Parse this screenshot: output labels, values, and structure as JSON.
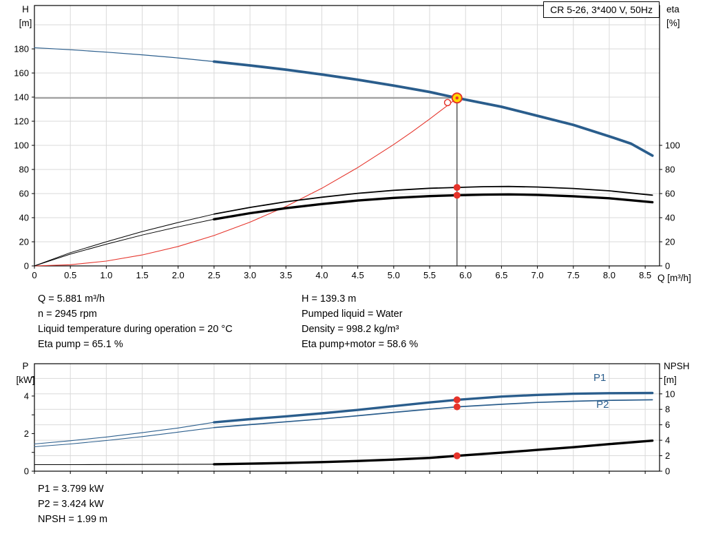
{
  "title_box": {
    "label": "CR 5-26, 3*400 V, 50Hz"
  },
  "colors": {
    "blue": "#2a5d8c",
    "red": "#e5332a",
    "black": "#000000",
    "yellow": "#ffd800",
    "gray": "#6f6f6f",
    "dark": "#2e2e2e",
    "grid": "#d9d9d9"
  },
  "info_top": {
    "col1": [
      "Q = 5.881 m³/h",
      "n = 2945 rpm",
      "Liquid temperature during operation = 20 °C",
      "Eta pump = 65.1 %"
    ],
    "col2": [
      "H = 139.3 m",
      "Pumped liquid = Water",
      "Density = 998.2 kg/m³",
      "Eta pump+motor = 58.6 %"
    ]
  },
  "info_bottom": [
    "P1 = 3.799 kW",
    "P2 = 3.424 kW",
    "NPSH = 1.99 m"
  ],
  "chart_data": [
    {
      "type": "line",
      "name": "head-efficiency-chart",
      "title": "CR 5-26, 3*400 V, 50Hz",
      "x": {
        "label": "Q [m³/h]",
        "min": 0,
        "max": 8.7,
        "tick_step": 0.5,
        "ticks": [
          0,
          0.5,
          1,
          1.5,
          2,
          2.5,
          3,
          3.5,
          4,
          4.5,
          5,
          5.5,
          6,
          6.5,
          7,
          7.5,
          8,
          8.5
        ],
        "tick_labels": [
          "0",
          "0.5",
          "1.0",
          "1.5",
          "2.0",
          "2.5",
          "3.0",
          "3.5",
          "4.0",
          "4.5",
          "5.0",
          "5.5",
          "6.0",
          "6.5",
          "7.0",
          "7.5",
          "8.0",
          "8.5"
        ]
      },
      "y_left": {
        "name": "H",
        "unit": "[m]",
        "min": 0,
        "max": 216,
        "ticks": [
          0,
          20,
          40,
          60,
          80,
          100,
          120,
          140,
          160,
          180
        ],
        "tick_labels": [
          "0",
          "20",
          "40",
          "60",
          "80",
          "100",
          "120",
          "140",
          "160",
          "180"
        ]
      },
      "y_right": {
        "name": "eta",
        "unit": "[%]",
        "min": 0,
        "max": 216,
        "ticks": [
          0,
          20,
          40,
          60,
          80,
          100
        ],
        "tick_labels": [
          "0",
          "20",
          "40",
          "60",
          "80",
          "100"
        ]
      },
      "grid_axis": "left",
      "grid_values": [
        20,
        40,
        60,
        80,
        100,
        120,
        140,
        160,
        180,
        200
      ],
      "series": [
        {
          "name": "pump-curve-h",
          "axis": "left",
          "color": "blue",
          "split": 2.5,
          "w_thin": 1.2,
          "w_thick": 3.8,
          "points": [
            [
              0,
              181
            ],
            [
              0.5,
              179.3
            ],
            [
              1,
              177.3
            ],
            [
              1.5,
              175.1
            ],
            [
              2,
              172.5
            ],
            [
              2.5,
              169.5
            ],
            [
              3,
              166.3
            ],
            [
              3.5,
              162.8
            ],
            [
              4,
              158.8
            ],
            [
              4.5,
              154.4
            ],
            [
              5,
              149.6
            ],
            [
              5.5,
              144.3
            ],
            [
              5.881,
              139.3
            ],
            [
              6.5,
              132
            ],
            [
              7,
              124.5
            ],
            [
              7.5,
              117
            ],
            [
              8,
              107.5
            ],
            [
              8.3,
              101.5
            ],
            [
              8.6,
              91.5
            ]
          ]
        },
        {
          "name": "system-curve",
          "axis": "left",
          "color": "red",
          "split": null,
          "w_thin": 1.1,
          "w_thick": 1.1,
          "points": [
            [
              0,
              0
            ],
            [
              0.5,
              1
            ],
            [
              1,
              4
            ],
            [
              1.5,
              9.1
            ],
            [
              2,
              16.1
            ],
            [
              2.5,
              25.2
            ],
            [
              3,
              36.3
            ],
            [
              3.5,
              49.3
            ],
            [
              4,
              64.4
            ],
            [
              4.5,
              81.6
            ],
            [
              5,
              100.7
            ],
            [
              5.25,
              111
            ],
            [
              5.5,
              121.8
            ],
            [
              5.75,
              133.1
            ],
            [
              5.881,
              139.3
            ]
          ]
        },
        {
          "name": "eta-pump-curve",
          "axis": "left",
          "color": "black",
          "split": 2.5,
          "w_thin": 1,
          "w_thick": 1.8,
          "points": [
            [
              0,
              0
            ],
            [
              0.5,
              11
            ],
            [
              1,
              20
            ],
            [
              1.5,
              28.5
            ],
            [
              2,
              36
            ],
            [
              2.5,
              43
            ],
            [
              3,
              48.5
            ],
            [
              3.5,
              53.2
            ],
            [
              4,
              57
            ],
            [
              4.5,
              60.2
            ],
            [
              5,
              62.7
            ],
            [
              5.5,
              64.4
            ],
            [
              5.881,
              65.1
            ],
            [
              6.25,
              65.7
            ],
            [
              6.6,
              65.9
            ],
            [
              7,
              65.4
            ],
            [
              7.5,
              64.2
            ],
            [
              8,
              62.3
            ],
            [
              8.6,
              58.7
            ]
          ]
        },
        {
          "name": "eta-pump-motor-curve",
          "axis": "left",
          "color": "black",
          "split": 2.5,
          "w_thin": 1,
          "w_thick": 3.4,
          "points": [
            [
              0,
              0
            ],
            [
              0.5,
              9.8
            ],
            [
              1,
              18
            ],
            [
              1.5,
              25.6
            ],
            [
              2,
              32.4
            ],
            [
              2.5,
              38.7
            ],
            [
              3,
              43.7
            ],
            [
              3.5,
              47.9
            ],
            [
              4,
              51.3
            ],
            [
              4.5,
              54.2
            ],
            [
              5,
              56.4
            ],
            [
              5.5,
              57.9
            ],
            [
              5.881,
              58.6
            ],
            [
              6.25,
              59.1
            ],
            [
              6.6,
              59.3
            ],
            [
              7,
              58.9
            ],
            [
              7.5,
              57.8
            ],
            [
              8,
              56.1
            ],
            [
              8.6,
              52.8
            ]
          ]
        }
      ],
      "crosshair": [
        {
          "type": "h",
          "axis": "left",
          "v": 139.3,
          "q0": 0,
          "q1": 5.881,
          "color": "gray"
        },
        {
          "type": "v",
          "axis": "left",
          "q": 5.881,
          "v0": 0,
          "v1": 139.3,
          "color": "dark"
        }
      ],
      "markers": [
        {
          "q": 5.881,
          "v": 139.3,
          "axis": "left",
          "kind": "duty",
          "name": "duty-point"
        },
        {
          "q": 5.75,
          "v": 135.5,
          "axis": "left",
          "kind": "open",
          "name": "rated-point"
        },
        {
          "q": 5.881,
          "v": 65.1,
          "axis": "left",
          "kind": "dot",
          "name": "eta-pump-point"
        },
        {
          "q": 5.881,
          "v": 58.6,
          "axis": "left",
          "kind": "dot",
          "name": "eta-pump-motor-point"
        }
      ],
      "annotations": []
    },
    {
      "type": "line",
      "name": "power-npsh-chart",
      "title": "",
      "x": {
        "label": "",
        "min": 0,
        "max": 8.7,
        "tick_step": 0.5,
        "ticks": [
          0,
          0.5,
          1,
          1.5,
          2,
          2.5,
          3,
          3.5,
          4,
          4.5,
          5,
          5.5,
          6,
          6.5,
          7,
          7.5,
          8,
          8.5
        ],
        "tick_labels": []
      },
      "y_left": {
        "name": "P",
        "unit": "[kW]",
        "min": 0,
        "max": 5.72,
        "ticks": [
          0,
          1,
          2,
          3,
          4,
          5
        ],
        "tick_labels": [
          "0",
          "",
          "2",
          "",
          "4",
          ""
        ]
      },
      "y_right": {
        "name": "NPSH",
        "unit": "[m]",
        "min": 0,
        "max": 13.9,
        "ticks": [
          0,
          2,
          4,
          6,
          8,
          10,
          12
        ],
        "tick_labels": [
          "0",
          "2",
          "4",
          "6",
          "8",
          "10",
          ""
        ]
      },
      "grid_axis": "right",
      "grid_values": [
        2,
        4,
        6,
        8,
        10,
        12
      ],
      "series": [
        {
          "name": "p1-curve",
          "axis": "left",
          "color": "blue",
          "split": 2.5,
          "w_thin": 1.1,
          "w_thick": 3.4,
          "points": [
            [
              0,
              1.45
            ],
            [
              0.5,
              1.62
            ],
            [
              1,
              1.82
            ],
            [
              1.5,
              2.05
            ],
            [
              2,
              2.3
            ],
            [
              2.5,
              2.6
            ],
            [
              3,
              2.77
            ],
            [
              3.5,
              2.92
            ],
            [
              4,
              3.08
            ],
            [
              4.5,
              3.26
            ],
            [
              5,
              3.46
            ],
            [
              5.5,
              3.66
            ],
            [
              5.881,
              3.799
            ],
            [
              6.5,
              3.97
            ],
            [
              7,
              4.06
            ],
            [
              7.5,
              4.12
            ],
            [
              8,
              4.15
            ],
            [
              8.6,
              4.16
            ]
          ]
        },
        {
          "name": "p2-curve",
          "axis": "left",
          "color": "blue",
          "split": 2.5,
          "w_thin": 1.1,
          "w_thick": 1.7,
          "points": [
            [
              0,
              1.3
            ],
            [
              0.5,
              1.45
            ],
            [
              1,
              1.63
            ],
            [
              1.5,
              1.84
            ],
            [
              2,
              2.08
            ],
            [
              2.5,
              2.32
            ],
            [
              3,
              2.48
            ],
            [
              3.5,
              2.63
            ],
            [
              4,
              2.78
            ],
            [
              4.5,
              2.95
            ],
            [
              5,
              3.13
            ],
            [
              5.5,
              3.3
            ],
            [
              5.881,
              3.424
            ],
            [
              6.5,
              3.56
            ],
            [
              7,
              3.66
            ],
            [
              7.5,
              3.72
            ],
            [
              8,
              3.77
            ],
            [
              8.6,
              3.8
            ]
          ]
        },
        {
          "name": "npsh-curve",
          "axis": "right",
          "color": "black",
          "split": 2.5,
          "w_thin": 1.1,
          "w_thick": 3.4,
          "points": [
            [
              0,
              0.85
            ],
            [
              0.5,
              0.85
            ],
            [
              1,
              0.86
            ],
            [
              1.5,
              0.87
            ],
            [
              2,
              0.88
            ],
            [
              2.5,
              0.9
            ],
            [
              3,
              0.97
            ],
            [
              3.5,
              1.06
            ],
            [
              4,
              1.18
            ],
            [
              4.5,
              1.32
            ],
            [
              5,
              1.5
            ],
            [
              5.5,
              1.72
            ],
            [
              5.881,
              1.99
            ],
            [
              6.5,
              2.4
            ],
            [
              7,
              2.75
            ],
            [
              7.5,
              3.1
            ],
            [
              8,
              3.5
            ],
            [
              8.6,
              3.95
            ]
          ]
        }
      ],
      "crosshair": [],
      "markers": [
        {
          "q": 5.881,
          "v": 3.799,
          "axis": "left",
          "kind": "dot",
          "name": "p1-point"
        },
        {
          "q": 5.881,
          "v": 3.424,
          "axis": "left",
          "kind": "dot",
          "name": "p2-point"
        },
        {
          "q": 5.881,
          "v": 1.99,
          "axis": "right",
          "kind": "dot",
          "name": "npsh-point"
        }
      ],
      "annotations": [
        {
          "text": "P1",
          "q": 7.78,
          "v": 4.8,
          "axis": "left"
        },
        {
          "text": "P2",
          "q": 7.82,
          "v": 3.37,
          "axis": "left"
        }
      ]
    }
  ]
}
